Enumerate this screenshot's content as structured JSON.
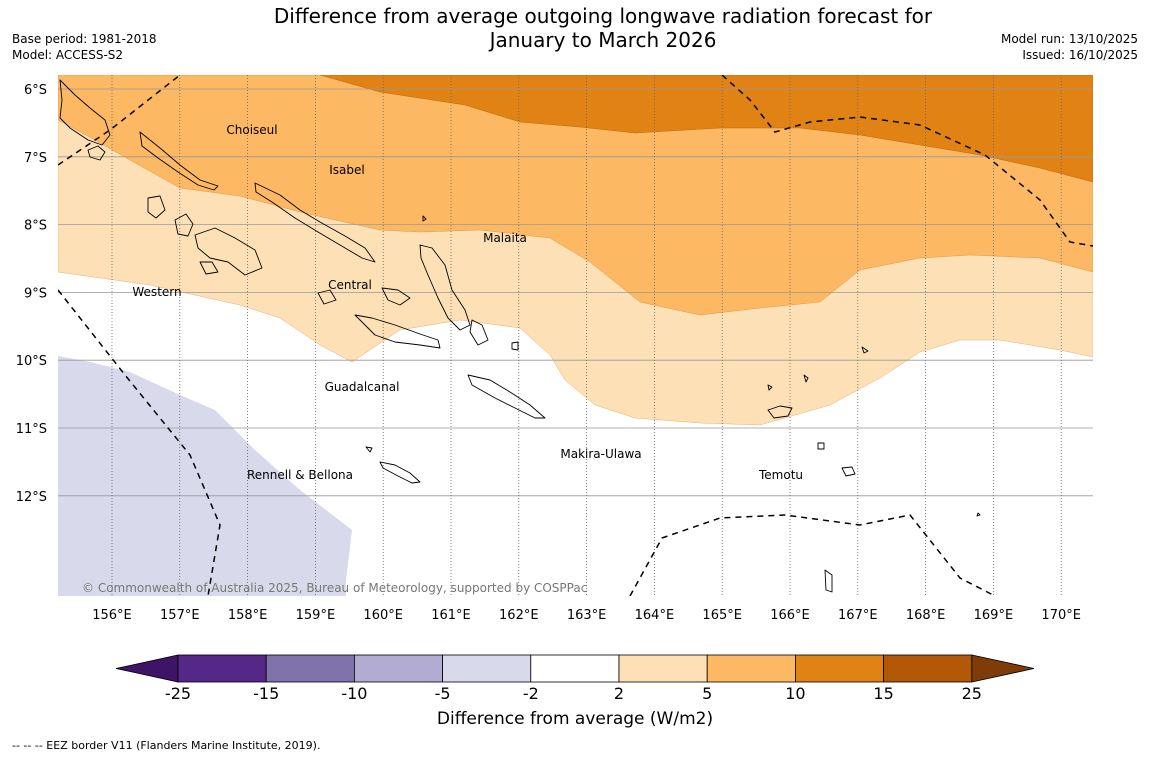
{
  "header": {
    "title_line1": "Difference from average outgoing longwave radiation forecast for",
    "title_line2": "January to March 2026",
    "base_period": "Base period: 1981-2018",
    "model": "Model: ACCESS-S2",
    "model_run": "Model run: 13/10/2025",
    "issued": "Issued: 16/10/2025"
  },
  "map": {
    "lat_labels": [
      "6°S",
      "7°S",
      "8°S",
      "9°S",
      "10°S",
      "11°S",
      "12°S"
    ],
    "lon_labels": [
      "156°E",
      "157°E",
      "158°E",
      "159°E",
      "160°E",
      "161°E",
      "162°E",
      "163°E",
      "164°E",
      "165°E",
      "166°E",
      "167°E",
      "168°E",
      "169°E",
      "170°E"
    ],
    "province_labels": [
      "Choiseul",
      "Isabel",
      "Malaita",
      "Western",
      "Central",
      "Guadalcanal",
      "Makira-Ulawa",
      "Rennell & Bellona",
      "Temotu"
    ],
    "copyright": "© Commonwealth of Australia 2025, Bureau of Meteorology, supported by COSPPac"
  },
  "colorbar": {
    "ticks": [
      "-25",
      "-15",
      "-10",
      "-5",
      "-2",
      "2",
      "5",
      "10",
      "15",
      "25"
    ],
    "colors": [
      "#3d1466",
      "#542788",
      "#8073ac",
      "#b2abd2",
      "#d8daeb",
      "#ffffff",
      "#fee0b6",
      "#fdb863",
      "#e08214",
      "#b35806",
      "#7f3b08"
    ],
    "label": "Difference from average (W/m2)"
  },
  "footer": {
    "eez_note": "--  --  -- EEZ border V11 (Flanders Marine Institute, 2019)."
  }
}
